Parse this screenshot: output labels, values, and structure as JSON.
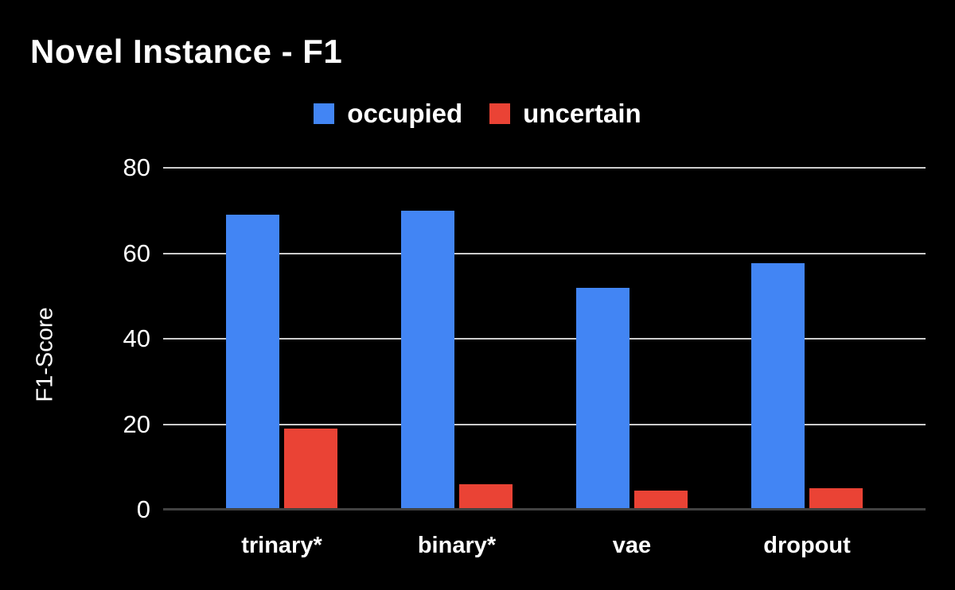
{
  "title": "Novel Instance - F1",
  "colors": {
    "background": "#000000",
    "text": "#FFFFFF",
    "gridline": "#CCCCCC",
    "axis_line": "#424242",
    "occupied": "#4285F4",
    "uncertain": "#EA4335"
  },
  "chart_data": {
    "type": "bar",
    "title": "Novel Instance - F1",
    "categories": [
      "trinary*",
      "binary*",
      "vae",
      "dropout"
    ],
    "series": [
      {
        "name": "occupied",
        "color": "#4285F4",
        "values": [
          69,
          70,
          52,
          57.7
        ]
      },
      {
        "name": "uncertain",
        "color": "#EA4335",
        "values": [
          19,
          6,
          4.5,
          5
        ]
      }
    ],
    "xlabel": "",
    "ylabel": "F1-Score",
    "ylim": [
      0,
      80
    ],
    "yticks": [
      0,
      20,
      40,
      60,
      80
    ],
    "grid": true,
    "legend_position": "top-center"
  }
}
